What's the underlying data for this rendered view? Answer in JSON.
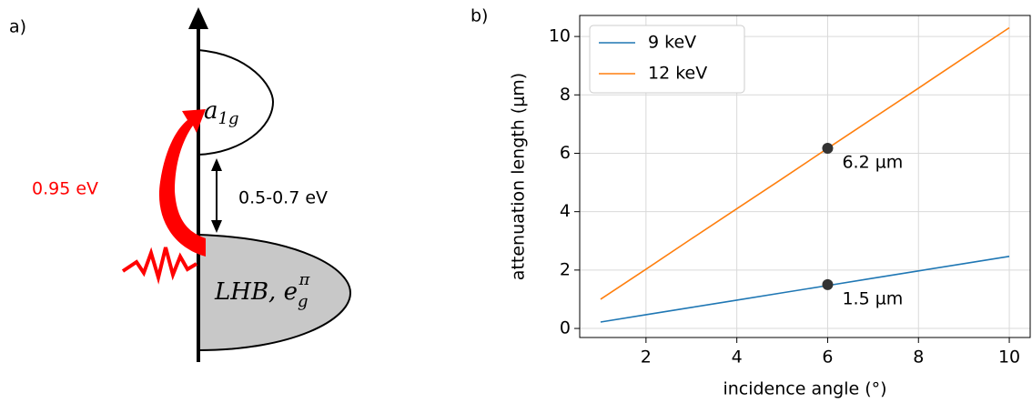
{
  "panel_labels": [
    "a)",
    "b)"
  ],
  "diagram": {
    "upper_band": {
      "base": "a",
      "sub": "1g"
    },
    "lower_band": {
      "base": "LHB, e",
      "sub": "g",
      "sup": "π"
    },
    "gap_label": "0.5-0.7 eV",
    "excitation_label": "0.95 eV"
  },
  "chart_data": {
    "type": "line",
    "xlabel": "incidence angle (°)",
    "ylabel": "attenuation length (μm)",
    "x": [
      1,
      2,
      3,
      4,
      5,
      6,
      7,
      8,
      9,
      10
    ],
    "series": [
      {
        "name": "9 keV",
        "color": "#1f77b4",
        "values": [
          0.22,
          0.47,
          0.72,
          0.97,
          1.22,
          1.47,
          1.72,
          1.97,
          2.22,
          2.47
        ]
      },
      {
        "name": "12 keV",
        "color": "#ff7f0e",
        "values": [
          1.0,
          2.03,
          3.07,
          4.1,
          5.13,
          6.17,
          7.2,
          8.23,
          9.27,
          10.3
        ]
      }
    ],
    "annotations": [
      {
        "x": 6,
        "y": 6.17,
        "label": "6.2 µm"
      },
      {
        "x": 6,
        "y": 1.5,
        "label": "1.5 µm"
      }
    ],
    "xlim": [
      0.54,
      10.46
    ],
    "ylim": [
      -0.31,
      10.72
    ],
    "xticks": [
      2,
      4,
      6,
      8,
      10
    ],
    "yticks": [
      0,
      2,
      4,
      6,
      8,
      10
    ],
    "grid": true,
    "legend": "upper left"
  }
}
